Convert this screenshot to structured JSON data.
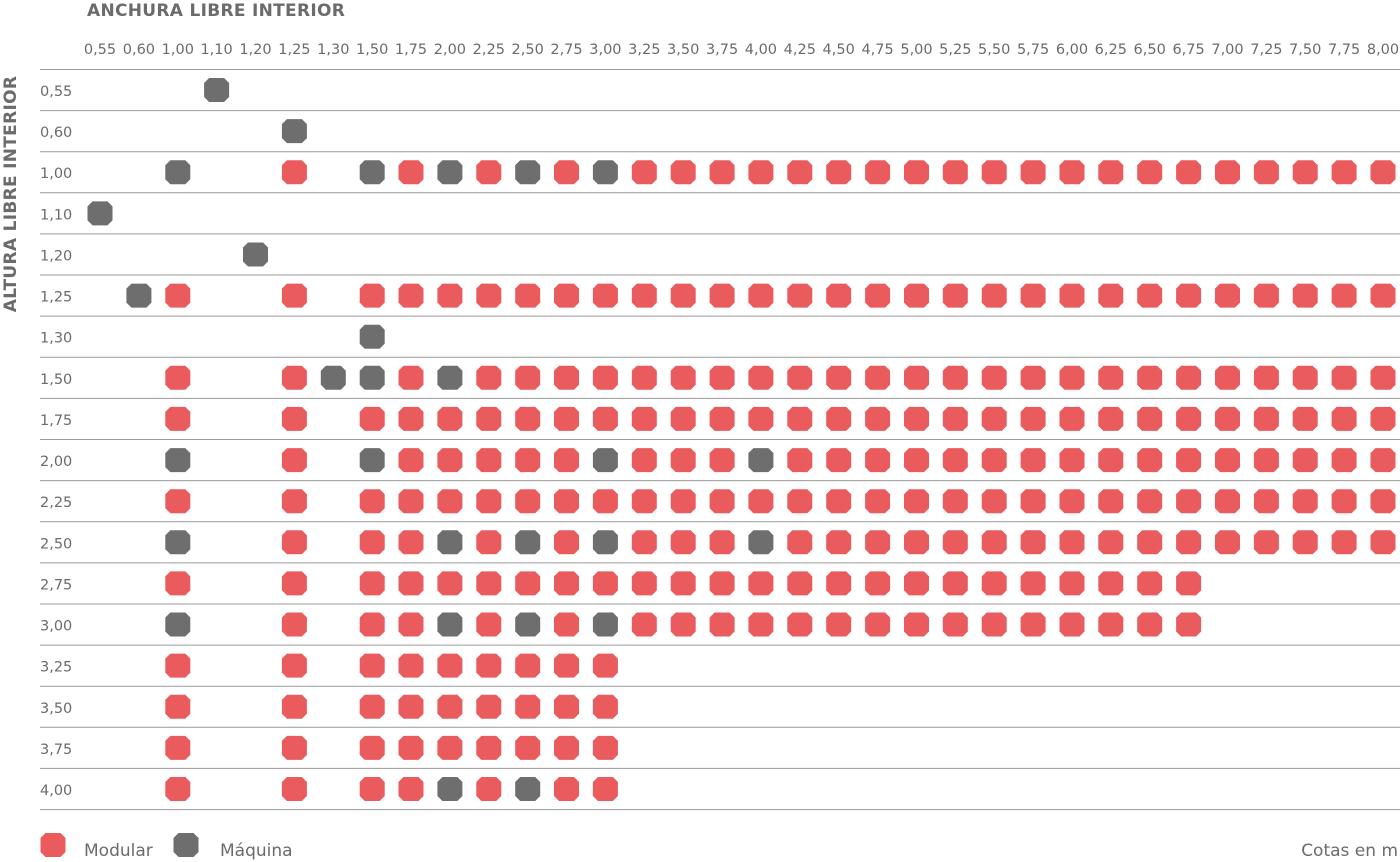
{
  "chart_data": {
    "type": "table",
    "title": "",
    "xlabel": "ANCHURA LIBRE INTERIOR",
    "ylabel": "ALTURA LIBRE INTERIOR",
    "units_note": "Cotas en m",
    "x": [
      "0,55",
      "0,60",
      "1,00",
      "1,10",
      "1,20",
      "1,25",
      "1,30",
      "1,50",
      "1,75",
      "2,00",
      "2,25",
      "2,50",
      "2,75",
      "3,00",
      "3,25",
      "3,50",
      "3,75",
      "4,00",
      "4,25",
      "4,50",
      "4,75",
      "5,00",
      "5,25",
      "5,50",
      "5,75",
      "6,00",
      "6,25",
      "6,50",
      "6,75",
      "7,00",
      "7,25",
      "7,50",
      "7,75",
      "8,00"
    ],
    "y": [
      "0,55",
      "0,60",
      "1,00",
      "1,10",
      "1,20",
      "1,25",
      "1,30",
      "1,50",
      "1,75",
      "2,00",
      "2,25",
      "2,50",
      "2,75",
      "3,00",
      "3,25",
      "3,50",
      "3,75",
      "4,00"
    ],
    "legend": [
      {
        "code": "M",
        "name": "Modular",
        "color": "#ea5b5e"
      },
      {
        "code": "G",
        "name": "Máquina",
        "color": "#6e6e6e"
      }
    ],
    "legend_position": "bottom-left",
    "grid": "horizontal",
    "cells": [
      "...G..............................",
      ".....G............................",
      "..G..M.GMGMGMGMMMMMMMMMMMMMMMMMMMM",
      "G.................................",
      "....G.............................",
      ".GM..M.MMMMMMMMMMMMMMMMMMMMMMMMMMM",
      ".......G..........................",
      "..M..MGGMGMMMMMMMMMMMMMMMMMMMMMMMM",
      "..M..M.MMMMMMMMMMMMMMMMMMMMMMMMMMM",
      "..G..M.GMMMMMGMMMGMMMMMMMMMMMMMMMM",
      "..M..M.MMMMMMMMMMMMMMMMMMMMMMMMMMM",
      "..G..M.MMGMGMGMMMGMMMMMMMMMMMMMMMM",
      "..M..M.MMMMMMMMMMMMMMMMMMMMMM.....",
      "..G..M.MMGMGMGMMMMMMMMMMMMMMM.....",
      "..M..M.MMMMMMM....................",
      "..M..M.MMMMMMM....................",
      "..M..M.MMMMMMM....................",
      "..M..M.MMGMGMM...................."
    ]
  }
}
